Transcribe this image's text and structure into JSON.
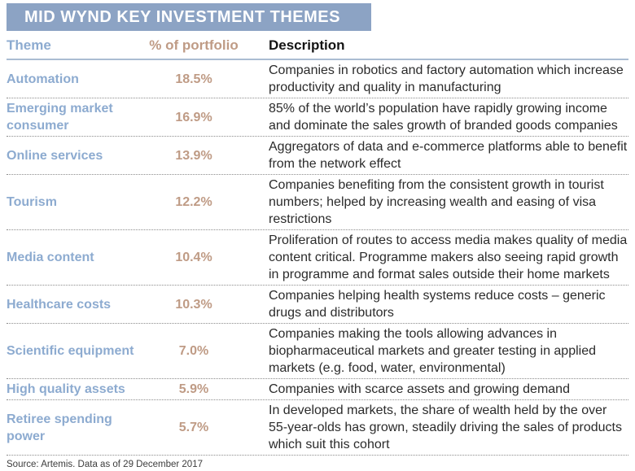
{
  "title": "MID WYND KEY INVESTMENT THEMES",
  "colors": {
    "title_bar_bg": "#8ca3c4",
    "title_text": "#ffffff",
    "theme_text": "#8dabd0",
    "pct_text": "#bf9b85",
    "desc_text": "#2b2b2b",
    "header_rule": "#aabcd2",
    "row_rule": "#8c8c8c",
    "source_text": "#3d3d3d"
  },
  "table": {
    "columns": [
      {
        "key": "theme",
        "label": "Theme"
      },
      {
        "key": "pct",
        "label": "% of portfolio"
      },
      {
        "key": "desc",
        "label": "Description"
      }
    ],
    "rows": [
      {
        "theme": "Automation",
        "pct": "18.5%",
        "desc": "Companies in robotics and factory automation which increase productivity and quality in manufacturing"
      },
      {
        "theme": "Emerging market consumer",
        "pct": "16.9%",
        "desc": "85% of the world’s population have rapidly growing income and dominate the sales growth of branded goods companies"
      },
      {
        "theme": "Online services",
        "pct": "13.9%",
        "desc": "Aggregators of data and e-commerce platforms able to benefit from the network effect"
      },
      {
        "theme": "Tourism",
        "pct": "12.2%",
        "desc": "Companies benefiting from the consistent growth in tourist numbers; helped by increasing wealth and easing of visa restrictions"
      },
      {
        "theme": "Media content",
        "pct": "10.4%",
        "desc": "Proliferation of routes to access media makes quality of media content critical. Programme makers also seeing rapid growth in programme and format sales outside their home markets"
      },
      {
        "theme": "Healthcare costs",
        "pct": "10.3%",
        "desc": "Companies helping health systems reduce costs – generic drugs and distributors"
      },
      {
        "theme": "Scientific equipment",
        "pct": "7.0%",
        "desc": "Companies making the tools allowing advances in biopharmaceutical markets and greater testing in applied markets (e.g. food, water, environmental)"
      },
      {
        "theme": "High quality assets",
        "pct": "5.9%",
        "desc": "Companies with scarce assets and growing demand"
      },
      {
        "theme": "Retiree spending power",
        "pct": "5.7%",
        "desc": "In developed markets, the share of wealth held by the over 55-year-olds has grown, steadily driving the sales of products which suit this cohort"
      }
    ]
  },
  "footer": {
    "source": "Source: Artemis. Data as of 29 December 2017"
  }
}
